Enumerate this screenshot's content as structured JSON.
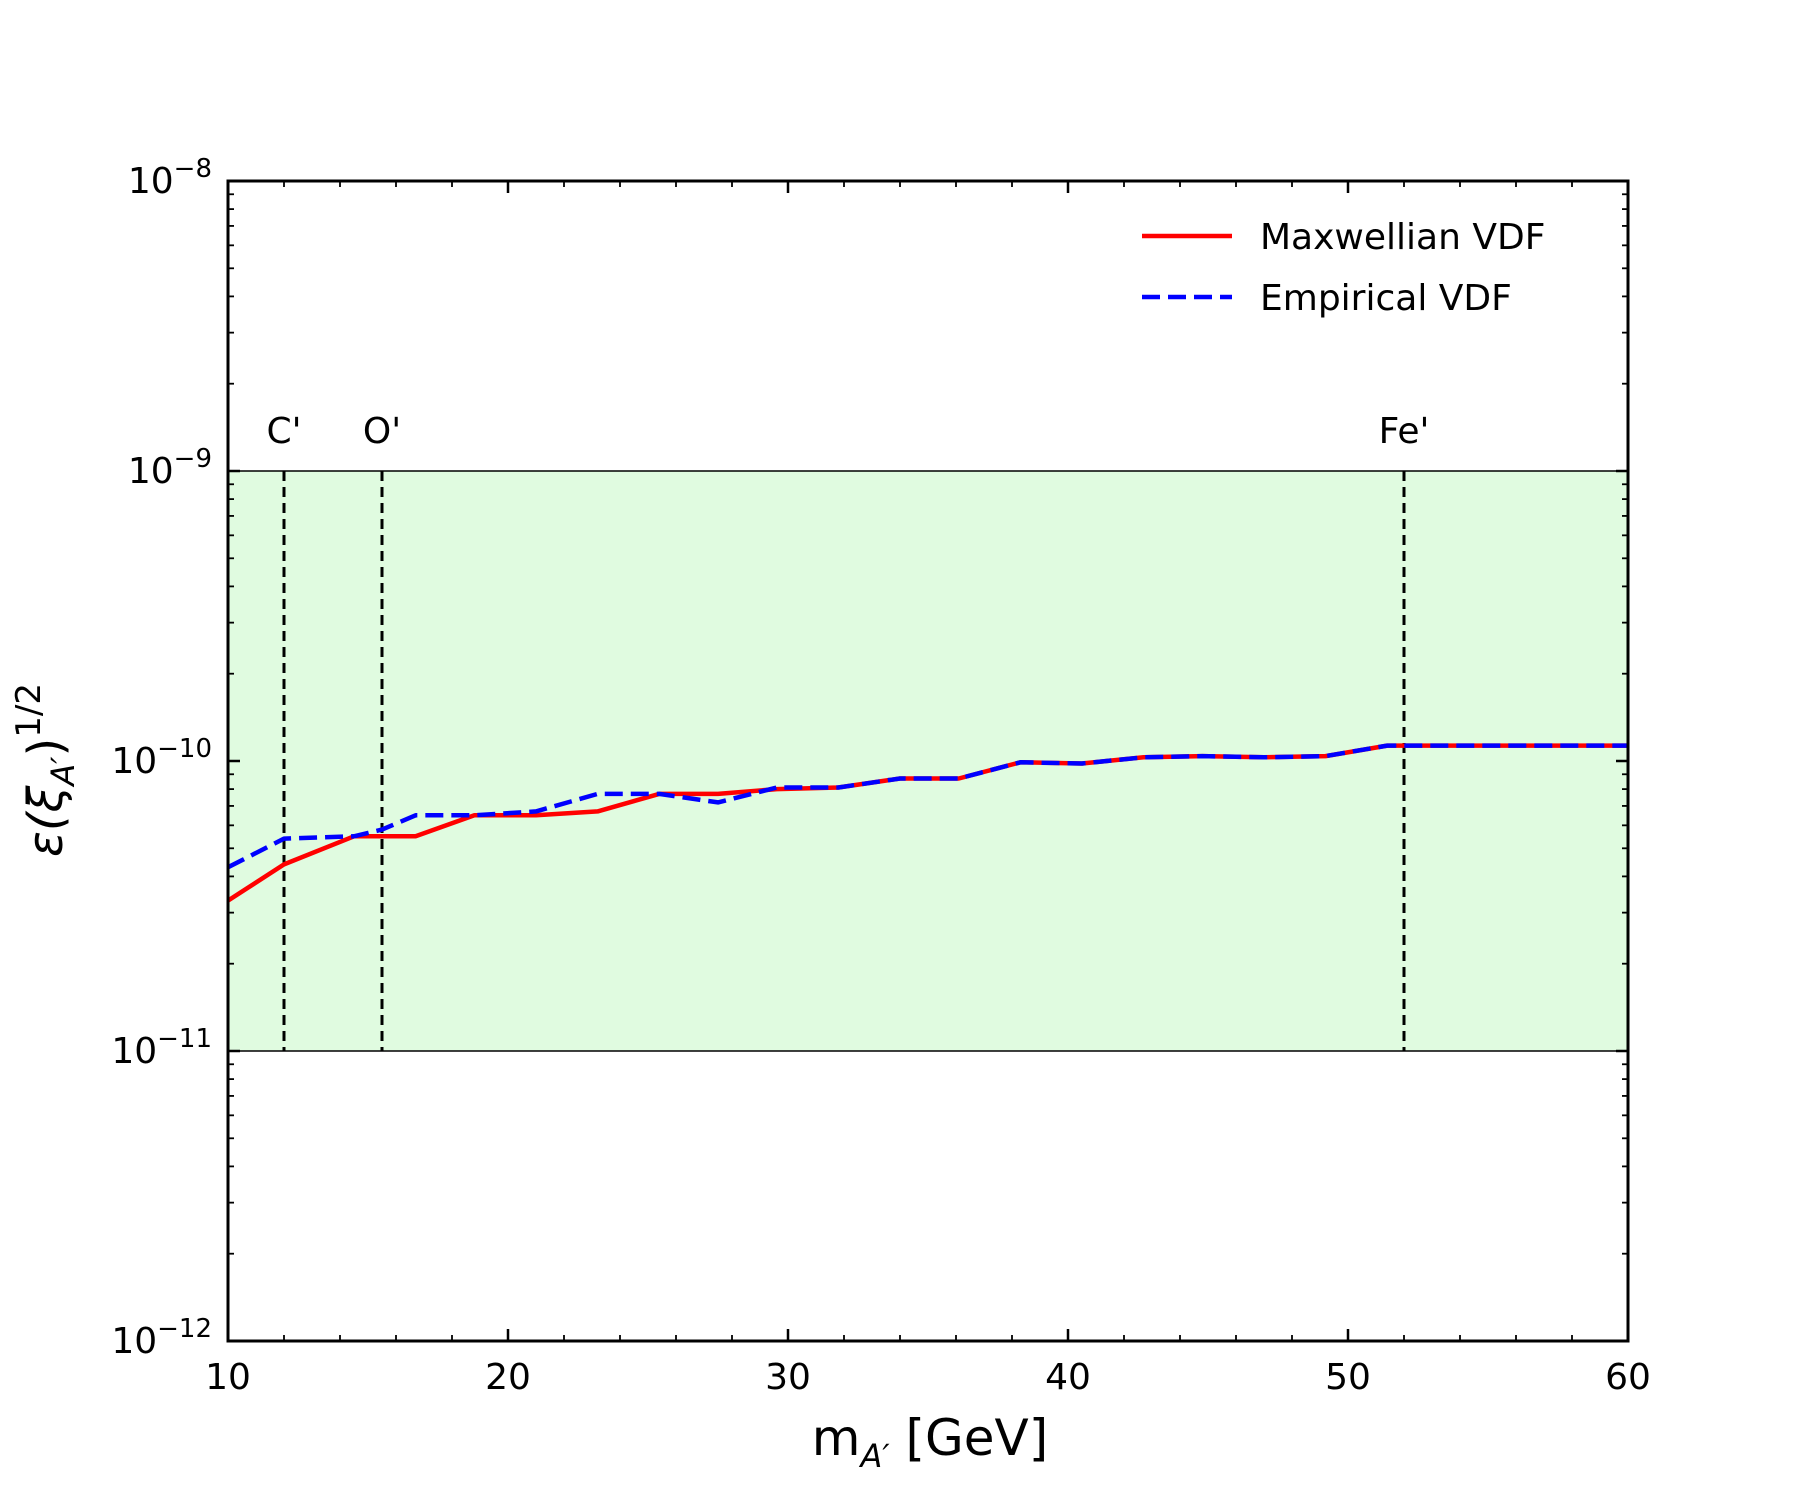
{
  "chart_data": {
    "type": "line",
    "title": "",
    "xlabel": {
      "main": "m",
      "sub": "A′",
      "rest": " [GeV]"
    },
    "ylabel": {
      "pre": "ε(ξ",
      "sub": "A′",
      "post": ")",
      "sup": "1/2"
    },
    "xlim": [
      10,
      60
    ],
    "ylim_log10": [
      -12,
      -8
    ],
    "yscale": "log",
    "xticks": [
      10,
      20,
      30,
      40,
      50,
      60
    ],
    "xtick_labels": [
      "10",
      "20",
      "30",
      "40",
      "50",
      "60"
    ],
    "yticks": [
      {
        "base": "10",
        "exp": "−8",
        "log10": -8
      },
      {
        "base": "10",
        "exp": "−9",
        "log10": -9
      },
      {
        "base": "10",
        "exp": "−10",
        "log10": -10
      },
      {
        "base": "10",
        "exp": "−11",
        "log10": -11
      },
      {
        "base": "10",
        "exp": "−12",
        "log10": -12
      }
    ],
    "shaded_band": {
      "color": "#e0fbe0",
      "y_low": 1e-11,
      "y_high": 1e-09
    },
    "vertical_markers": [
      {
        "label": "C'",
        "x": 12
      },
      {
        "label": "O'",
        "x": 15.5
      },
      {
        "label": "Fe'",
        "x": 52
      }
    ],
    "series": [
      {
        "name": "Maxwellian VDF",
        "color": "#ff0000",
        "style": "solid",
        "x": [
          10,
          12,
          14.5,
          16.7,
          18.8,
          21,
          23.2,
          25.4,
          27.5,
          29.6,
          31.8,
          34,
          36.1,
          38.3,
          40.5,
          42.7,
          44.8,
          47,
          49.2,
          51.4,
          53.5,
          55.7,
          57.9,
          60
        ],
        "y": [
          3.3e-11,
          4.4e-11,
          5.5e-11,
          5.5e-11,
          6.5e-11,
          6.5e-11,
          6.7e-11,
          7.7e-11,
          7.7e-11,
          8e-11,
          8.1e-11,
          8.7e-11,
          8.7e-11,
          9.9e-11,
          9.8e-11,
          1.03e-10,
          1.04e-10,
          1.03e-10,
          1.04e-10,
          1.13e-10,
          1.13e-10,
          1.13e-10,
          1.13e-10,
          1.13e-10
        ]
      },
      {
        "name": "Empirical VDF",
        "color": "#0000ff",
        "style": "dashed",
        "x": [
          10,
          12,
          14.5,
          15.5,
          16.7,
          18.8,
          21,
          23.2,
          25.4,
          27.5,
          29.6,
          31.8,
          34,
          36.1,
          38.3,
          40.5,
          42.7,
          44.8,
          47,
          49.2,
          51.4,
          53.5,
          55.7,
          57.9,
          60
        ],
        "y": [
          4.3e-11,
          5.4e-11,
          5.5e-11,
          5.8e-11,
          6.5e-11,
          6.5e-11,
          6.7e-11,
          7.7e-11,
          7.7e-11,
          7.2e-11,
          8.1e-11,
          8.1e-11,
          8.7e-11,
          8.7e-11,
          9.9e-11,
          9.8e-11,
          1.03e-10,
          1.04e-10,
          1.03e-10,
          1.04e-10,
          1.13e-10,
          1.13e-10,
          1.13e-10,
          1.13e-10,
          1.13e-10
        ]
      }
    ],
    "legend": {
      "position": "top-right"
    }
  }
}
